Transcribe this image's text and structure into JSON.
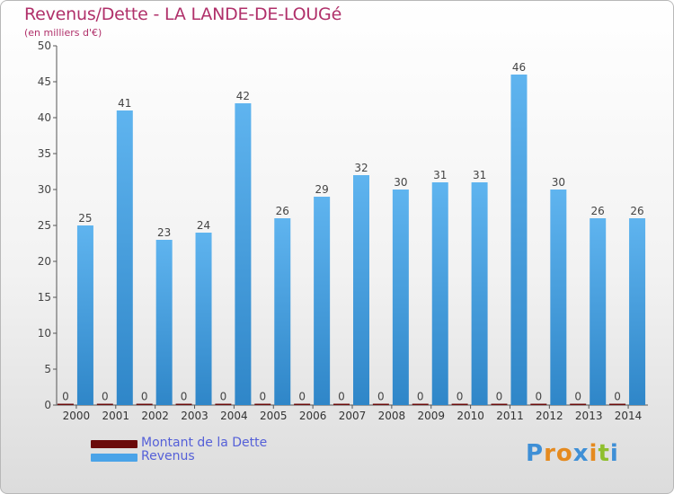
{
  "header": {
    "title": "Revenus/Dette - LA LANDE-DE-LOUGé",
    "subtitle": "(en milliers d'€)"
  },
  "legend": {
    "items": [
      {
        "label": "Montant de la Dette",
        "color": "#6b0a0a"
      },
      {
        "label": "Revenus",
        "color": "#4aa3e8"
      }
    ]
  },
  "logo": {
    "text": "Proxiti",
    "letters": [
      {
        "ch": "P",
        "color": "#3e8fd6"
      },
      {
        "ch": "r",
        "color": "#e58a1f"
      },
      {
        "ch": "o",
        "color": "#e58a1f"
      },
      {
        "ch": "x",
        "color": "#3e8fd6"
      },
      {
        "ch": "i",
        "color": "#e58a1f"
      },
      {
        "ch": "t",
        "color": "#8fbf2e"
      },
      {
        "ch": "i",
        "color": "#3e8fd6"
      }
    ]
  },
  "chart_data": {
    "type": "bar",
    "categories": [
      "2000",
      "2001",
      "2002",
      "2003",
      "2004",
      "2005",
      "2006",
      "2007",
      "2008",
      "2009",
      "2010",
      "2011",
      "2012",
      "2013",
      "2014"
    ],
    "series": [
      {
        "name": "Montant de la Dette",
        "color": "#6b0a0a",
        "values": [
          0,
          0,
          0,
          0,
          0,
          0,
          0,
          0,
          0,
          0,
          0,
          0,
          0,
          0,
          0
        ]
      },
      {
        "name": "Revenus",
        "color": "#4aa3e8",
        "values": [
          25,
          41,
          23,
          24,
          42,
          26,
          29,
          32,
          30,
          31,
          31,
          46,
          30,
          26,
          26
        ]
      }
    ],
    "title": "Revenus/Dette - LA LANDE-DE-LOUGé",
    "subtitle": "(en milliers d'€)",
    "ylim": [
      0,
      50
    ],
    "yticks": [
      0,
      5,
      10,
      15,
      20,
      25,
      30,
      35,
      40,
      45,
      50
    ],
    "grid": false,
    "legend_position": "bottom-left"
  }
}
